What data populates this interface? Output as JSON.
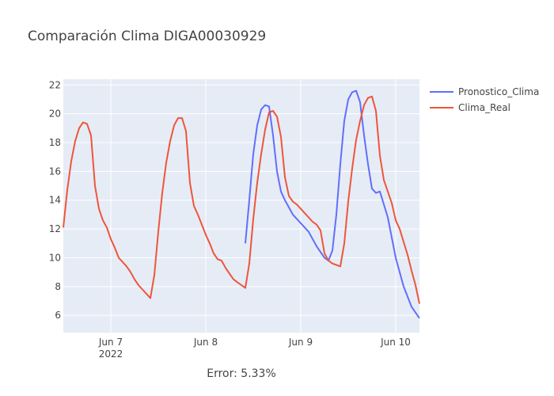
{
  "chart_data": {
    "type": "line",
    "title": "Comparación Clima DIGA00030929",
    "annotation": "Error: 5.33%",
    "xlabel": "",
    "ylabel": "",
    "xlim": [
      "2022-06-06 12:00",
      "2022-06-10 06:00"
    ],
    "ylim": [
      4.8,
      22.4
    ],
    "yticks": [
      6,
      8,
      10,
      12,
      14,
      16,
      18,
      20,
      22
    ],
    "xticks": [
      {
        "date": "2022-06-07 00:00",
        "label": "Jun 7",
        "sublabel": "2022"
      },
      {
        "date": "2022-06-08 00:00",
        "label": "Jun 8",
        "sublabel": ""
      },
      {
        "date": "2022-06-09 00:00",
        "label": "Jun 9",
        "sublabel": ""
      },
      {
        "date": "2022-06-10 00:00",
        "label": "Jun 10",
        "sublabel": ""
      }
    ],
    "grid": true,
    "legend_position": "top-right",
    "series": [
      {
        "name": "Pronostico_Clima",
        "color": "#636efa",
        "x": [
          "2022-06-08 10:00",
          "2022-06-08 11:00",
          "2022-06-08 12:00",
          "2022-06-08 13:00",
          "2022-06-08 14:00",
          "2022-06-08 15:00",
          "2022-06-08 16:00",
          "2022-06-08 17:00",
          "2022-06-08 18:00",
          "2022-06-08 19:00",
          "2022-06-08 20:00",
          "2022-06-08 22:00",
          "2022-06-09 00:00",
          "2022-06-09 02:00",
          "2022-06-09 04:00",
          "2022-06-09 06:00",
          "2022-06-09 07:00",
          "2022-06-09 08:00",
          "2022-06-09 09:00",
          "2022-06-09 10:00",
          "2022-06-09 11:00",
          "2022-06-09 12:00",
          "2022-06-09 13:00",
          "2022-06-09 14:00",
          "2022-06-09 15:00",
          "2022-06-09 16:00",
          "2022-06-09 17:00",
          "2022-06-09 18:00",
          "2022-06-09 19:00",
          "2022-06-09 20:00",
          "2022-06-09 22:00",
          "2022-06-10 00:00",
          "2022-06-10 02:00",
          "2022-06-10 04:00",
          "2022-06-10 06:00"
        ],
        "y": [
          11.0,
          14.0,
          17.2,
          19.2,
          20.3,
          20.6,
          20.5,
          18.5,
          16.0,
          14.6,
          14.0,
          13.0,
          12.4,
          11.8,
          10.8,
          10.0,
          9.8,
          10.5,
          13.0,
          16.5,
          19.5,
          21.0,
          21.5,
          21.6,
          20.8,
          18.5,
          16.5,
          14.8,
          14.5,
          14.6,
          12.8,
          10.0,
          8.0,
          6.6,
          5.8
        ]
      },
      {
        "name": "Clima_Real",
        "color": "#ef553b",
        "x": [
          "2022-06-06 12:00",
          "2022-06-06 13:00",
          "2022-06-06 14:00",
          "2022-06-06 15:00",
          "2022-06-06 16:00",
          "2022-06-06 17:00",
          "2022-06-06 18:00",
          "2022-06-06 19:00",
          "2022-06-06 20:00",
          "2022-06-06 21:00",
          "2022-06-06 22:00",
          "2022-06-06 23:00",
          "2022-06-07 00:00",
          "2022-06-07 01:00",
          "2022-06-07 02:00",
          "2022-06-07 03:00",
          "2022-06-07 04:00",
          "2022-06-07 05:00",
          "2022-06-07 06:00",
          "2022-06-07 07:00",
          "2022-06-07 08:00",
          "2022-06-07 09:00",
          "2022-06-07 10:00",
          "2022-06-07 11:00",
          "2022-06-07 12:00",
          "2022-06-07 13:00",
          "2022-06-07 14:00",
          "2022-06-07 15:00",
          "2022-06-07 16:00",
          "2022-06-07 17:00",
          "2022-06-07 18:00",
          "2022-06-07 19:00",
          "2022-06-07 20:00",
          "2022-06-07 21:00",
          "2022-06-07 22:00",
          "2022-06-07 23:00",
          "2022-06-08 00:00",
          "2022-06-08 01:00",
          "2022-06-08 02:00",
          "2022-06-08 03:00",
          "2022-06-08 04:00",
          "2022-06-08 05:00",
          "2022-06-08 06:00",
          "2022-06-08 07:00",
          "2022-06-08 08:00",
          "2022-06-08 09:00",
          "2022-06-08 10:00",
          "2022-06-08 11:00",
          "2022-06-08 12:00",
          "2022-06-08 13:00",
          "2022-06-08 14:00",
          "2022-06-08 15:00",
          "2022-06-08 16:00",
          "2022-06-08 17:00",
          "2022-06-08 18:00",
          "2022-06-08 19:00",
          "2022-06-08 20:00",
          "2022-06-08 21:00",
          "2022-06-08 22:00",
          "2022-06-08 23:00",
          "2022-06-09 00:00",
          "2022-06-09 01:00",
          "2022-06-09 02:00",
          "2022-06-09 03:00",
          "2022-06-09 04:00",
          "2022-06-09 05:00",
          "2022-06-09 06:00",
          "2022-06-09 07:00",
          "2022-06-09 08:00",
          "2022-06-09 09:00",
          "2022-06-09 10:00",
          "2022-06-09 11:00",
          "2022-06-09 12:00",
          "2022-06-09 13:00",
          "2022-06-09 14:00",
          "2022-06-09 15:00",
          "2022-06-09 16:00",
          "2022-06-09 17:00",
          "2022-06-09 18:00",
          "2022-06-09 19:00",
          "2022-06-09 20:00",
          "2022-06-09 21:00",
          "2022-06-09 22:00",
          "2022-06-09 23:00",
          "2022-06-10 00:00",
          "2022-06-10 01:00",
          "2022-06-10 02:00",
          "2022-06-10 03:00",
          "2022-06-10 04:00",
          "2022-06-10 05:00",
          "2022-06-10 06:00"
        ],
        "y": [
          12.1,
          14.7,
          16.7,
          18.1,
          19.0,
          19.4,
          19.3,
          18.5,
          15.0,
          13.4,
          12.6,
          12.1,
          11.3,
          10.7,
          10.0,
          9.7,
          9.4,
          9.0,
          8.5,
          8.1,
          7.8,
          7.5,
          7.2,
          8.8,
          11.8,
          14.5,
          16.6,
          18.1,
          19.2,
          19.7,
          19.7,
          18.8,
          15.2,
          13.6,
          13.0,
          12.3,
          11.6,
          11.0,
          10.3,
          9.9,
          9.8,
          9.3,
          8.9,
          8.5,
          8.3,
          8.1,
          7.9,
          9.6,
          12.7,
          15.2,
          17.2,
          18.9,
          20.1,
          20.2,
          19.8,
          18.4,
          15.6,
          14.3,
          13.9,
          13.7,
          13.4,
          13.1,
          12.8,
          12.5,
          12.3,
          11.9,
          10.3,
          9.8,
          9.6,
          9.5,
          9.4,
          11.0,
          13.9,
          16.2,
          18.2,
          19.5,
          20.6,
          21.1,
          21.2,
          20.2,
          17.1,
          15.4,
          14.6,
          13.8,
          12.6,
          12.0,
          11.1,
          10.2,
          9.1,
          8.1,
          6.8
        ]
      }
    ]
  }
}
